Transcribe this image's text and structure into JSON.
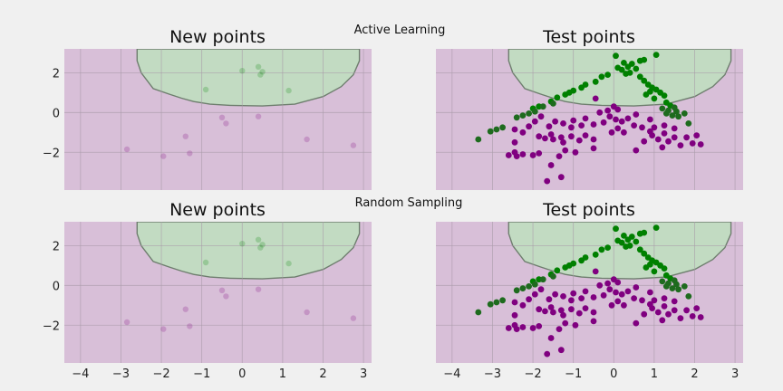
{
  "colors": {
    "figure_bg": "#f0f0f0",
    "region_negative": "#d8bfd8",
    "region_positive": "#c2dbc2",
    "boundary": "#6e7e6e",
    "grid": "#a89aa8",
    "class_purple": "#800080",
    "class_green": "#008000",
    "class_darkgreen": "#1e6b1e"
  },
  "rows": [
    {
      "suptitle": "Active Learning",
      "panels": [
        {
          "title": "New points",
          "x_tick_labels": [
            "−4",
            "−3",
            "−2",
            "−1",
            "0",
            "1",
            "2",
            "3"
          ],
          "y_tick_labels": [
            "−2",
            "0",
            "2"
          ]
        },
        {
          "title": "Test points",
          "x_tick_labels": [
            "−4",
            "−3",
            "−2",
            "−1",
            "0",
            "1",
            "2",
            "3"
          ],
          "y_tick_labels": []
        }
      ]
    },
    {
      "suptitle": "Random Sampling",
      "panels": [
        {
          "title": "New points",
          "x_tick_labels": [
            "−4",
            "−3",
            "−2",
            "−1",
            "0",
            "1",
            "2",
            "3"
          ],
          "y_tick_labels": [
            "−2",
            "0",
            "2"
          ]
        },
        {
          "title": "Test points",
          "x_tick_labels": [
            "−4",
            "−3",
            "−2",
            "−1",
            "0",
            "1",
            "2",
            "3"
          ],
          "y_tick_labels": []
        }
      ]
    }
  ],
  "chart_data": {
    "type": "scatter",
    "xlim": [
      -4.4,
      3.2
    ],
    "ylim": [
      -3.9,
      3.2
    ],
    "x_ticks": [
      -4,
      -3,
      -2,
      -1,
      0,
      1,
      2,
      3
    ],
    "y_ticks": [
      -2,
      0,
      2
    ],
    "grid": true,
    "decision_boundary": [
      [
        -2.6,
        2.6
      ],
      [
        -2.5,
        2.0
      ],
      [
        -2.2,
        1.2
      ],
      [
        -1.8,
        0.92
      ],
      [
        -1.5,
        0.72
      ],
      [
        -1.2,
        0.55
      ],
      [
        -0.8,
        0.42
      ],
      [
        -0.3,
        0.36
      ],
      [
        0.5,
        0.33
      ],
      [
        1.3,
        0.42
      ],
      [
        2.0,
        0.8
      ],
      [
        2.45,
        1.3
      ],
      [
        2.75,
        1.9
      ],
      [
        2.9,
        2.6
      ],
      [
        2.9,
        3.2
      ],
      [
        -2.6,
        3.2
      ]
    ],
    "new_points": [
      {
        "x": 0.0,
        "y": 2.1,
        "class": "green"
      },
      {
        "x": 0.4,
        "y": 2.3,
        "class": "green"
      },
      {
        "x": 0.5,
        "y": 2.05,
        "class": "green"
      },
      {
        "x": 0.45,
        "y": 1.9,
        "class": "green"
      },
      {
        "x": -0.9,
        "y": 1.15,
        "class": "green"
      },
      {
        "x": 1.15,
        "y": 1.1,
        "class": "green"
      },
      {
        "x": -0.5,
        "y": -0.25,
        "class": "purple"
      },
      {
        "x": -0.4,
        "y": -0.55,
        "class": "purple"
      },
      {
        "x": 0.4,
        "y": -0.2,
        "class": "purple"
      },
      {
        "x": -1.4,
        "y": -1.2,
        "class": "purple"
      },
      {
        "x": -1.3,
        "y": -2.05,
        "class": "purple"
      },
      {
        "x": -1.95,
        "y": -2.2,
        "class": "purple"
      },
      {
        "x": -2.85,
        "y": -1.85,
        "class": "purple"
      },
      {
        "x": 1.6,
        "y": -1.35,
        "class": "purple"
      },
      {
        "x": 2.75,
        "y": -1.65,
        "class": "purple"
      }
    ],
    "test_points": [
      {
        "x": 0.05,
        "y": 2.85,
        "class": "green"
      },
      {
        "x": 0.25,
        "y": 2.5,
        "class": "green"
      },
      {
        "x": 0.45,
        "y": 2.45,
        "class": "green"
      },
      {
        "x": 0.65,
        "y": 2.6,
        "class": "green"
      },
      {
        "x": 0.75,
        "y": 2.65,
        "class": "green"
      },
      {
        "x": 1.05,
        "y": 2.9,
        "class": "green"
      },
      {
        "x": 0.35,
        "y": 2.3,
        "class": "green"
      },
      {
        "x": 0.2,
        "y": 2.15,
        "class": "green"
      },
      {
        "x": 0.4,
        "y": 2.0,
        "class": "green"
      },
      {
        "x": 0.3,
        "y": 1.95,
        "class": "green"
      },
      {
        "x": 0.55,
        "y": 2.2,
        "class": "green"
      },
      {
        "x": 0.1,
        "y": 2.25,
        "class": "green"
      },
      {
        "x": -0.15,
        "y": 1.9,
        "class": "green"
      },
      {
        "x": -0.3,
        "y": 1.8,
        "class": "green"
      },
      {
        "x": -0.45,
        "y": 1.55,
        "class": "green"
      },
      {
        "x": -0.7,
        "y": 1.4,
        "class": "green"
      },
      {
        "x": -0.8,
        "y": 1.25,
        "class": "green"
      },
      {
        "x": -1.0,
        "y": 1.1,
        "class": "green"
      },
      {
        "x": -1.1,
        "y": 1.0,
        "class": "green"
      },
      {
        "x": -1.2,
        "y": 0.9,
        "class": "green"
      },
      {
        "x": -1.4,
        "y": 0.75,
        "class": "green"
      },
      {
        "x": -1.55,
        "y": 0.55,
        "class": "green"
      },
      {
        "x": -1.85,
        "y": 0.3,
        "class": "green"
      },
      {
        "x": -2.0,
        "y": 0.2,
        "class": "green"
      },
      {
        "x": 0.65,
        "y": 1.8,
        "class": "green"
      },
      {
        "x": 0.75,
        "y": 1.6,
        "class": "green"
      },
      {
        "x": 0.85,
        "y": 1.4,
        "class": "green"
      },
      {
        "x": 0.95,
        "y": 1.25,
        "class": "green"
      },
      {
        "x": 1.05,
        "y": 1.15,
        "class": "green"
      },
      {
        "x": 1.15,
        "y": 1.0,
        "class": "green"
      },
      {
        "x": 1.25,
        "y": 0.85,
        "class": "green"
      },
      {
        "x": 1.0,
        "y": 0.7,
        "class": "green"
      },
      {
        "x": 0.8,
        "y": 0.9,
        "class": "green"
      },
      {
        "x": 0.9,
        "y": 1.05,
        "class": "green"
      },
      {
        "x": 1.3,
        "y": 0.5,
        "class": "green"
      },
      {
        "x": 1.4,
        "y": 0.35,
        "class": "green"
      },
      {
        "x": 1.2,
        "y": 0.2,
        "class": "darkgreen"
      },
      {
        "x": 1.35,
        "y": 0.1,
        "class": "darkgreen"
      },
      {
        "x": 1.55,
        "y": 0.05,
        "class": "darkgreen"
      },
      {
        "x": 1.45,
        "y": -0.15,
        "class": "darkgreen"
      },
      {
        "x": 1.6,
        "y": -0.2,
        "class": "darkgreen"
      },
      {
        "x": 1.75,
        "y": -0.05,
        "class": "darkgreen"
      },
      {
        "x": 1.5,
        "y": 0.25,
        "class": "darkgreen"
      },
      {
        "x": 1.85,
        "y": -0.55,
        "class": "darkgreen"
      },
      {
        "x": 1.3,
        "y": -0.05,
        "class": "darkgreen"
      },
      {
        "x": -1.75,
        "y": 0.3,
        "class": "darkgreen"
      },
      {
        "x": -1.95,
        "y": 0.05,
        "class": "darkgreen"
      },
      {
        "x": -2.1,
        "y": -0.05,
        "class": "darkgreen"
      },
      {
        "x": -2.25,
        "y": -0.15,
        "class": "darkgreen"
      },
      {
        "x": -2.4,
        "y": -0.25,
        "class": "darkgreen"
      },
      {
        "x": -2.75,
        "y": -0.75,
        "class": "darkgreen"
      },
      {
        "x": -2.9,
        "y": -0.85,
        "class": "darkgreen"
      },
      {
        "x": -3.05,
        "y": -0.95,
        "class": "darkgreen"
      },
      {
        "x": -3.35,
        "y": -1.35,
        "class": "darkgreen"
      },
      {
        "x": -1.5,
        "y": 0.45,
        "class": "darkgreen"
      },
      {
        "x": -0.45,
        "y": 0.7,
        "class": "purple"
      },
      {
        "x": -0.15,
        "y": 0.1,
        "class": "purple"
      },
      {
        "x": 0.0,
        "y": 0.3,
        "class": "purple"
      },
      {
        "x": 0.1,
        "y": 0.15,
        "class": "purple"
      },
      {
        "x": -0.35,
        "y": 0.0,
        "class": "purple"
      },
      {
        "x": -0.1,
        "y": -0.2,
        "class": "purple"
      },
      {
        "x": 0.05,
        "y": -0.35,
        "class": "purple"
      },
      {
        "x": 0.2,
        "y": -0.45,
        "class": "purple"
      },
      {
        "x": 0.35,
        "y": -0.3,
        "class": "purple"
      },
      {
        "x": -0.25,
        "y": -0.5,
        "class": "purple"
      },
      {
        "x": 0.5,
        "y": -0.65,
        "class": "purple"
      },
      {
        "x": 0.55,
        "y": -0.1,
        "class": "purple"
      },
      {
        "x": 0.1,
        "y": -0.8,
        "class": "purple"
      },
      {
        "x": -0.05,
        "y": -1.0,
        "class": "purple"
      },
      {
        "x": 0.25,
        "y": -1.0,
        "class": "purple"
      },
      {
        "x": 0.7,
        "y": -0.75,
        "class": "purple"
      },
      {
        "x": 0.9,
        "y": -0.35,
        "class": "purple"
      },
      {
        "x": 0.75,
        "y": -1.45,
        "class": "purple"
      },
      {
        "x": 0.95,
        "y": -1.15,
        "class": "purple"
      },
      {
        "x": 1.1,
        "y": -1.35,
        "class": "purple"
      },
      {
        "x": 1.25,
        "y": -1.05,
        "class": "purple"
      },
      {
        "x": 1.35,
        "y": -1.45,
        "class": "purple"
      },
      {
        "x": 1.5,
        "y": -1.25,
        "class": "purple"
      },
      {
        "x": 1.65,
        "y": -1.65,
        "class": "purple"
      },
      {
        "x": 1.8,
        "y": -1.25,
        "class": "purple"
      },
      {
        "x": 1.95,
        "y": -1.55,
        "class": "purple"
      },
      {
        "x": 2.05,
        "y": -1.15,
        "class": "purple"
      },
      {
        "x": 2.15,
        "y": -1.6,
        "class": "purple"
      },
      {
        "x": 1.2,
        "y": -1.75,
        "class": "purple"
      },
      {
        "x": 0.55,
        "y": -1.9,
        "class": "purple"
      },
      {
        "x": 1.0,
        "y": -0.75,
        "class": "purple"
      },
      {
        "x": 1.25,
        "y": -0.65,
        "class": "purple"
      },
      {
        "x": 1.5,
        "y": -0.8,
        "class": "purple"
      },
      {
        "x": 0.9,
        "y": -0.95,
        "class": "purple"
      },
      {
        "x": -0.5,
        "y": -0.6,
        "class": "purple"
      },
      {
        "x": -0.7,
        "y": -0.3,
        "class": "purple"
      },
      {
        "x": -0.8,
        "y": -0.65,
        "class": "purple"
      },
      {
        "x": -1.0,
        "y": -0.4,
        "class": "purple"
      },
      {
        "x": -1.05,
        "y": -0.75,
        "class": "purple"
      },
      {
        "x": -1.25,
        "y": -0.55,
        "class": "purple"
      },
      {
        "x": -1.45,
        "y": -0.45,
        "class": "purple"
      },
      {
        "x": -1.6,
        "y": -0.7,
        "class": "purple"
      },
      {
        "x": -1.8,
        "y": -0.2,
        "class": "purple"
      },
      {
        "x": -1.95,
        "y": -0.45,
        "class": "purple"
      },
      {
        "x": -2.1,
        "y": -0.7,
        "class": "purple"
      },
      {
        "x": -2.25,
        "y": -1.0,
        "class": "purple"
      },
      {
        "x": -2.45,
        "y": -0.85,
        "class": "purple"
      },
      {
        "x": -1.85,
        "y": -1.2,
        "class": "purple"
      },
      {
        "x": -1.55,
        "y": -1.1,
        "class": "purple"
      },
      {
        "x": -1.3,
        "y": -1.25,
        "class": "purple"
      },
      {
        "x": -1.05,
        "y": -1.2,
        "class": "purple"
      },
      {
        "x": -0.85,
        "y": -1.4,
        "class": "purple"
      },
      {
        "x": -0.7,
        "y": -1.15,
        "class": "purple"
      },
      {
        "x": -0.5,
        "y": -1.35,
        "class": "purple"
      },
      {
        "x": -1.25,
        "y": -1.5,
        "class": "purple"
      },
      {
        "x": -1.5,
        "y": -1.35,
        "class": "purple"
      },
      {
        "x": -1.7,
        "y": -1.3,
        "class": "purple"
      },
      {
        "x": -2.45,
        "y": -1.5,
        "class": "purple"
      },
      {
        "x": -1.2,
        "y": -1.9,
        "class": "purple"
      },
      {
        "x": -0.95,
        "y": -2.0,
        "class": "purple"
      },
      {
        "x": -1.35,
        "y": -2.2,
        "class": "purple"
      },
      {
        "x": -1.85,
        "y": -2.05,
        "class": "purple"
      },
      {
        "x": -2.0,
        "y": -2.15,
        "class": "purple"
      },
      {
        "x": -2.25,
        "y": -2.1,
        "class": "purple"
      },
      {
        "x": -2.45,
        "y": -2.0,
        "class": "purple"
      },
      {
        "x": -2.6,
        "y": -2.15,
        "class": "purple"
      },
      {
        "x": -2.4,
        "y": -2.2,
        "class": "purple"
      },
      {
        "x": -1.55,
        "y": -2.65,
        "class": "purple"
      },
      {
        "x": -1.3,
        "y": -3.25,
        "class": "purple"
      },
      {
        "x": -1.65,
        "y": -3.45,
        "class": "purple"
      },
      {
        "x": -0.5,
        "y": -1.8,
        "class": "purple"
      }
    ]
  }
}
